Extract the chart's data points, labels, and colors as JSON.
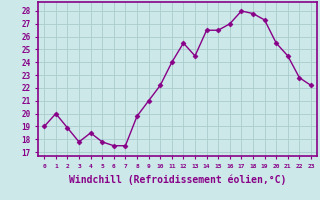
{
  "x": [
    0,
    1,
    2,
    3,
    4,
    5,
    6,
    7,
    8,
    9,
    10,
    11,
    12,
    13,
    14,
    15,
    16,
    17,
    18,
    19,
    20,
    21,
    22,
    23
  ],
  "y": [
    19.0,
    20.0,
    18.9,
    17.8,
    18.5,
    17.8,
    17.5,
    17.5,
    19.8,
    21.0,
    22.2,
    24.0,
    25.5,
    24.5,
    26.5,
    26.5,
    27.0,
    28.0,
    27.8,
    27.3,
    25.5,
    24.5,
    22.8,
    22.2
  ],
  "line_color": "#880088",
  "marker": "D",
  "markersize": 2.5,
  "linewidth": 1.0,
  "xlabel": "Windchill (Refroidissement éolien,°C)",
  "xlabel_fontsize": 7,
  "ylabel_ticks": [
    17,
    18,
    19,
    20,
    21,
    22,
    23,
    24,
    25,
    26,
    27,
    28
  ],
  "xtick_labels": [
    "0",
    "1",
    "2",
    "3",
    "4",
    "5",
    "6",
    "7",
    "8",
    "9",
    "10",
    "11",
    "12",
    "13",
    "14",
    "15",
    "16",
    "17",
    "18",
    "19",
    "20",
    "21",
    "22",
    "23"
  ],
  "ylim": [
    16.7,
    28.7
  ],
  "xlim": [
    -0.5,
    23.5
  ],
  "bg_color": "#cce8e8",
  "grid_color": "#aacccc",
  "spine_color": "#880088"
}
